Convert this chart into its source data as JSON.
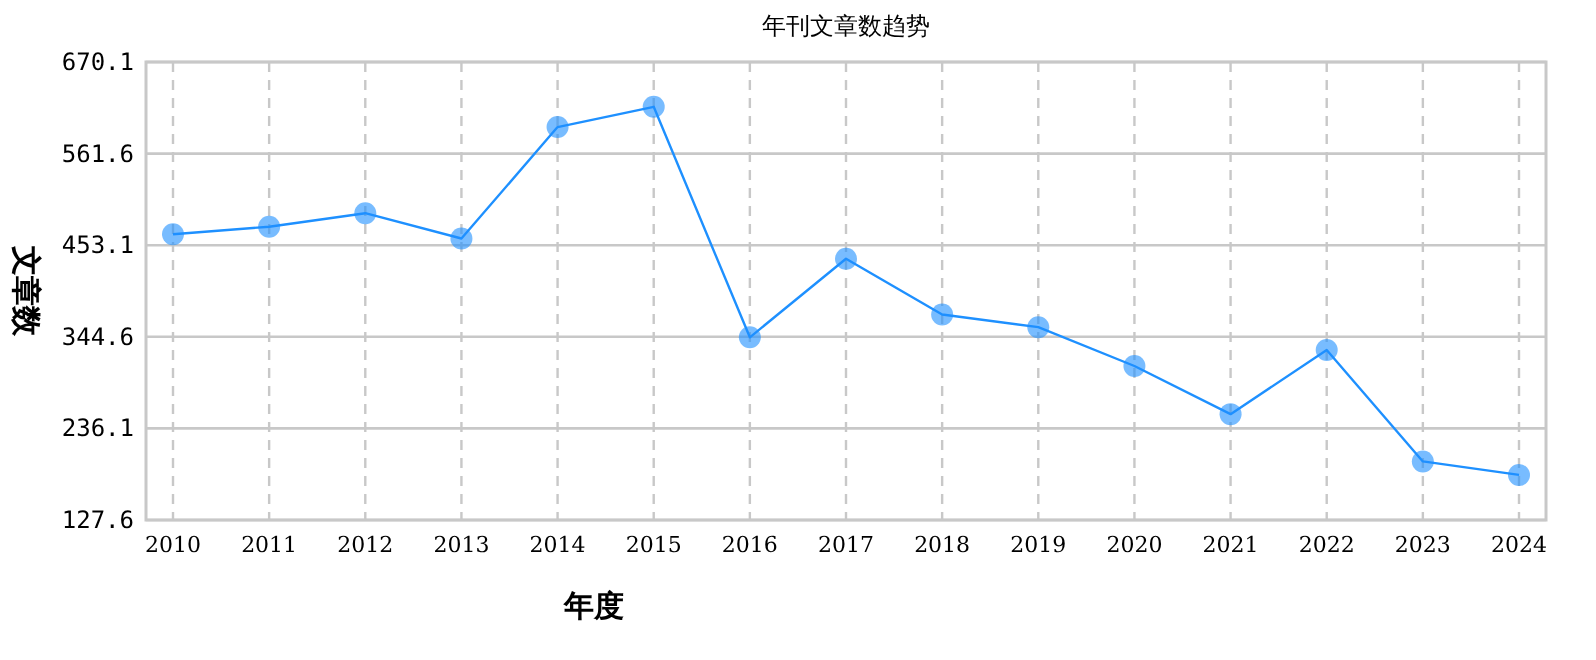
{
  "chart_data": {
    "type": "line",
    "title": "年刊文章数趋势",
    "xlabel": "年度",
    "ylabel": "文章数",
    "categories": [
      "2010",
      "2011",
      "2012",
      "2013",
      "2014",
      "2015",
      "2016",
      "2017",
      "2018",
      "2019",
      "2020",
      "2021",
      "2022",
      "2023",
      "2024"
    ],
    "series": [
      {
        "color": "#1e90ff",
        "values": [
          466,
          475,
          491,
          461,
          593,
          617,
          344,
          437,
          371,
          356,
          310,
          253,
          329,
          197,
          181
        ]
      }
    ],
    "ylim": [
      127.6,
      670.1
    ],
    "yticks": [
      127.6,
      236.1,
      344.6,
      453.1,
      561.6,
      670.1
    ],
    "grid": true,
    "marker": "circle",
    "line_style": "solid"
  }
}
